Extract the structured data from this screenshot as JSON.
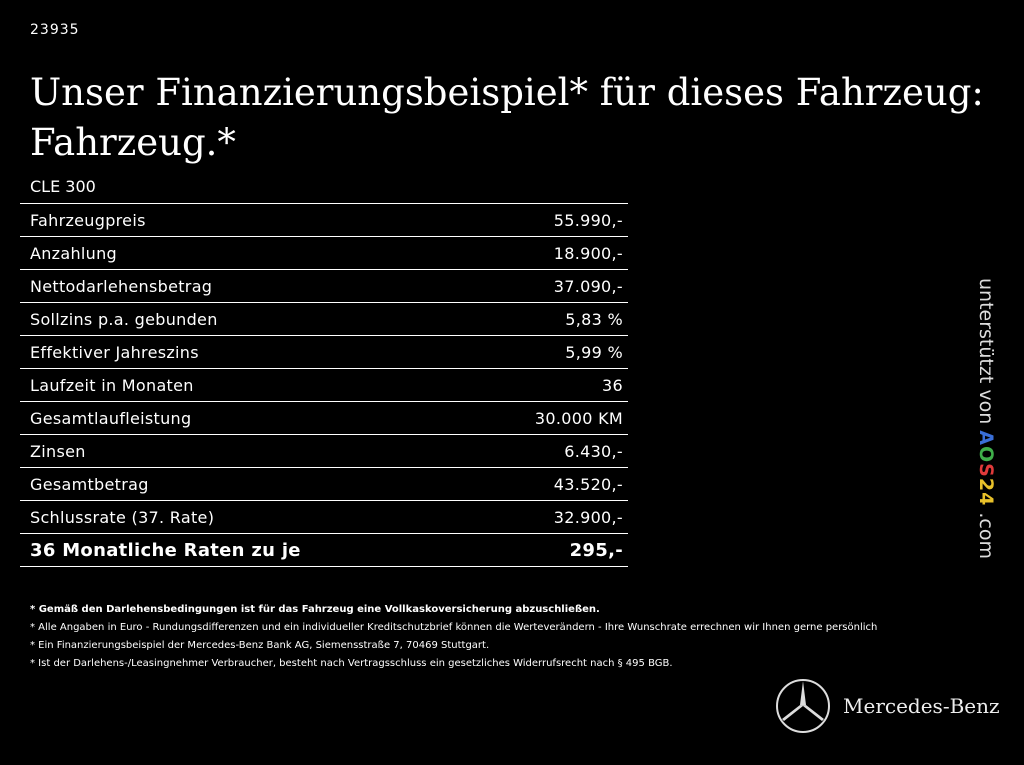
{
  "code": "23935",
  "title": "Unser Finanzierungsbeispiel* für dieses Fahrzeug: Fahrzeug.*",
  "model": "CLE 300",
  "rows": [
    {
      "label": "Fahrzeugpreis",
      "value": "55.990,-"
    },
    {
      "label": "Anzahlung",
      "value": "18.900,-"
    },
    {
      "label": "Nettodarlehensbetrag",
      "value": "37.090,-"
    },
    {
      "label": "Sollzins p.a. gebunden",
      "value": "5,83 %"
    },
    {
      "label": "Effektiver Jahreszins",
      "value": "5,99 %"
    },
    {
      "label": "Laufzeit in Monaten",
      "value": "36"
    },
    {
      "label": "Gesamtlaufleistung",
      "value": "30.000 KM"
    },
    {
      "label": "Zinsen",
      "value": "6.430,-"
    },
    {
      "label": "Gesamtbetrag",
      "value": "43.520,-"
    },
    {
      "label": "Schlussrate (37. Rate)",
      "value": "32.900,-"
    },
    {
      "label": "36 Monatliche Raten zu je",
      "value": "295,-"
    }
  ],
  "notes": [
    "* Gemäß den Darlehensbedingungen ist für das Fahrzeug eine Vollkaskoversicherung abzuschließen.",
    "* Alle Angaben in Euro - Rundungsdifferenzen und ein individueller Kreditschutzbrief können die Werteverändern - Ihre Wunschrate errechnen wir Ihnen gerne persönlich",
    "* Ein Finanzierungsbeispiel der Mercedes-Benz Bank AG, Siemensstraße 7, 70469 Stuttgart.",
    "* Ist der Darlehens-/Leasingnehmer Verbraucher, besteht nach Vertragsschluss ein gesetzliches Widerrufsrecht nach § 495 BGB."
  ],
  "side": {
    "prefix": "unterstützt von ",
    "brand": [
      "A",
      "O",
      "S",
      "2",
      "4"
    ],
    "brand_colors": [
      "#3a6fd8",
      "#3fae4a",
      "#e03a3a",
      "#e8c12a",
      "#e8c12a"
    ],
    "suffix": " .com"
  },
  "logo": {
    "text": "Mercedes-Benz"
  }
}
